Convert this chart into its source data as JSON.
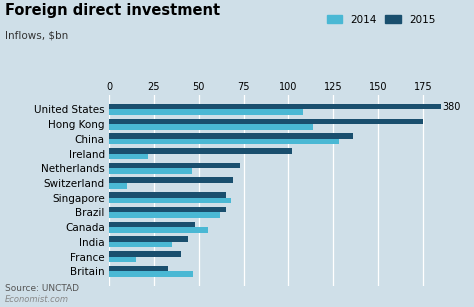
{
  "title": "Foreign direct investment",
  "subtitle": "Inflows, $bn",
  "source": "Source: UNCTAD",
  "watermark": "Economist.com",
  "countries": [
    "United States",
    "Hong Kong",
    "China",
    "Ireland",
    "Netherlands",
    "Switzerland",
    "Singapore",
    "Brazil",
    "Canada",
    "India",
    "France",
    "Britain"
  ],
  "values_2014": [
    108,
    114,
    128,
    22,
    46,
    10,
    68,
    62,
    55,
    35,
    15,
    47
  ],
  "values_2015": [
    380,
    175,
    136,
    102,
    73,
    69,
    65,
    65,
    48,
    44,
    40,
    33
  ],
  "values_2015_clipped": [
    185,
    175,
    136,
    102,
    73,
    69,
    65,
    65,
    48,
    44,
    40,
    33
  ],
  "color_2014": "#4ab8d4",
  "color_2015": "#1a4f6e",
  "xlim": [
    0,
    185
  ],
  "xticks": [
    0,
    25,
    50,
    75,
    100,
    125,
    150,
    175
  ],
  "background_color": "#cfdfe8",
  "title_fontsize": 10.5,
  "subtitle_fontsize": 7.5,
  "tick_fontsize": 7,
  "label_fontsize": 7.5,
  "source_fontsize": 6.5,
  "watermark_fontsize": 6,
  "annotation_380": "380",
  "legend_labels": [
    "2014",
    "2015"
  ]
}
